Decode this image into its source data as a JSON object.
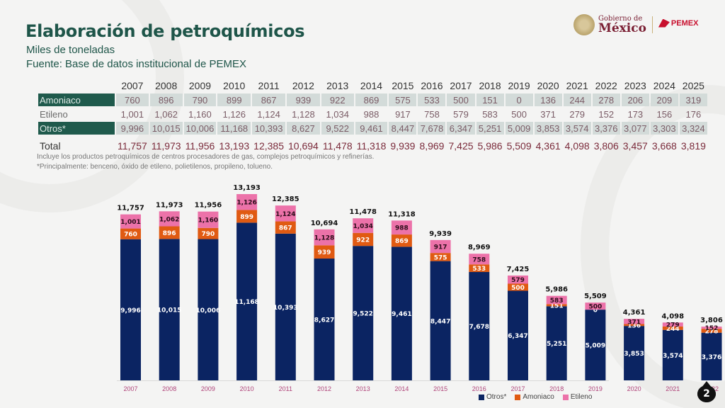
{
  "header": {
    "title": "Elaboración de petroquímicos",
    "subtitle": "Miles de toneladas",
    "source": "Fuente: Base de datos institucional de PEMEX",
    "logo_gob_line1": "Gobierno de",
    "logo_gob_line2": "México",
    "logo_pemex": "PEMEX"
  },
  "table": {
    "years": [
      "2007",
      "2008",
      "2009",
      "2010",
      "2011",
      "2012",
      "2013",
      "2014",
      "2015",
      "2016",
      "2017",
      "2018",
      "2019",
      "2020",
      "2021",
      "2022",
      "2023",
      "2024",
      "2025"
    ],
    "rows": [
      {
        "label": "Amoniaco",
        "values": [
          "760",
          "896",
          "790",
          "899",
          "867",
          "939",
          "922",
          "869",
          "575",
          "533",
          "500",
          "151",
          "0",
          "136",
          "244",
          "278",
          "206",
          "209",
          "319"
        ]
      },
      {
        "label": "Etileno",
        "values": [
          "1,001",
          "1,062",
          "1,160",
          "1,126",
          "1,124",
          "1,128",
          "1,034",
          "988",
          "917",
          "758",
          "579",
          "583",
          "500",
          "371",
          "279",
          "152",
          "173",
          "156",
          "176"
        ]
      },
      {
        "label": "Otros*",
        "values": [
          "9,996",
          "10,015",
          "10,006",
          "11,168",
          "10,393",
          "8,627",
          "9,522",
          "9,461",
          "8,447",
          "7,678",
          "6,347",
          "5,251",
          "5,009",
          "3,853",
          "3,574",
          "3,376",
          "3,077",
          "3,303",
          "3,324"
        ]
      },
      {
        "label": "Total",
        "values": [
          "11,757",
          "11,973",
          "11,956",
          "13,193",
          "12,385",
          "10,694",
          "11,478",
          "11,318",
          "9,939",
          "8,969",
          "7,425",
          "5,986",
          "5,509",
          "4,361",
          "4,098",
          "3,806",
          "3,457",
          "3,668",
          "3,819"
        ]
      }
    ],
    "note1": "Incluye los productos petroquímicos de centros procesadores de gas, complejos petroquímicos y refinerías.",
    "note2": "*Principalmente: benceno, óxido de etileno, polietilenos, propileno, tolueno."
  },
  "chart_data": {
    "type": "bar",
    "stacked": true,
    "title": "",
    "xlabel": "",
    "ylabel": "Miles de toneladas",
    "categories": [
      "2007",
      "2008",
      "2009",
      "2010",
      "2011",
      "2012",
      "2013",
      "2014",
      "2015",
      "2016",
      "2017",
      "2018",
      "2019",
      "2020",
      "2021",
      "2022",
      "2023",
      "2024",
      "2025"
    ],
    "series": [
      {
        "name": "Otros*",
        "color": "#0b2462",
        "values": [
          9996,
          10015,
          10006,
          11168,
          10393,
          8627,
          9522,
          9461,
          8447,
          7678,
          6347,
          5251,
          5009,
          3853,
          3574,
          3376,
          3077,
          3303,
          3324
        ]
      },
      {
        "name": "Amoniaco",
        "color": "#e05a12",
        "values": [
          760,
          896,
          790,
          899,
          867,
          939,
          922,
          869,
          575,
          533,
          500,
          151,
          0,
          136,
          244,
          278,
          206,
          209,
          319
        ]
      },
      {
        "name": "Etileno",
        "color": "#ec72a9",
        "values": [
          1001,
          1062,
          1160,
          1126,
          1124,
          1128,
          1034,
          988,
          917,
          758,
          579,
          583,
          500,
          371,
          279,
          152,
          173,
          156,
          176
        ]
      }
    ],
    "totals": [
      11757,
      11973,
      11956,
      13193,
      12385,
      10694,
      11478,
      11318,
      9939,
      8969,
      7425,
      5986,
      5509,
      4361,
      4098,
      3806,
      3457,
      3668,
      3819
    ],
    "ylim": [
      0,
      13193
    ],
    "grid": false,
    "legend": "bottom-right"
  },
  "page": {
    "number": "2"
  }
}
